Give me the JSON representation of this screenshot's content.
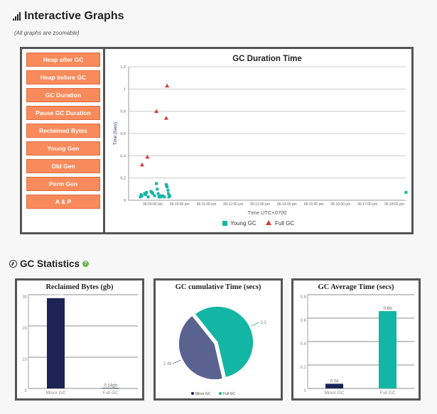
{
  "header": {
    "title": "Interactive Graphs",
    "subtitle": "(All graphs are zoomable)"
  },
  "menu": [
    "Heap after GC",
    "Heap before GC",
    "GC Duration",
    "Pause GC Duration",
    "Reclaimed Bytes",
    "Young Gen",
    "Old Gen",
    "Perm Gen",
    "A & P"
  ],
  "gc_stats": {
    "title": "GC Statistics"
  },
  "colors": {
    "accent_button": "#f88a5b",
    "young": "#13b5a5",
    "full": "#d93a3a",
    "navy": "#1c2456",
    "slate": "#5a6390",
    "teal": "#13b5a5"
  },
  "chart_data": [
    {
      "type": "scatter",
      "title": "GC Duration Time",
      "xlabel": "Time UTC+0700",
      "ylabel": "Time (Secs)",
      "ylim": [
        0,
        1.2
      ],
      "yticks": [
        "0",
        "0.2",
        "0.4",
        "0.6",
        "0.8",
        "1",
        "1.2"
      ],
      "xticks": [
        "06:09:00 pm",
        "06:10:00 pm",
        "06:11:00 pm",
        "06:12:00 pm",
        "06:13:00 pm",
        "06:14:00 pm",
        "06:15:00 pm",
        "06:16:00 pm",
        "06:17:00 pm",
        "06:18:00 pm"
      ],
      "legend_position": "bottom",
      "series": [
        {
          "name": "Young GC",
          "marker": "square",
          "points": [
            [
              "06:08:32 pm",
              0.03
            ],
            [
              "06:08:34 pm",
              0.05
            ],
            [
              "06:08:36 pm",
              0.04
            ],
            [
              "06:08:42 pm",
              0.06
            ],
            [
              "06:08:44 pm",
              0.05
            ],
            [
              "06:08:46 pm",
              0.07
            ],
            [
              "06:08:50 pm",
              0.03
            ],
            [
              "06:08:56 pm",
              0.08
            ],
            [
              "06:08:58 pm",
              0.07
            ],
            [
              "06:09:00 pm",
              0.06
            ],
            [
              "06:09:04 pm",
              0.04
            ],
            [
              "06:09:08 pm",
              0.15
            ],
            [
              "06:09:10 pm",
              0.1
            ],
            [
              "06:09:12 pm",
              0.06
            ],
            [
              "06:09:14 pm",
              0.03
            ],
            [
              "06:09:16 pm",
              0.04
            ],
            [
              "06:09:18 pm",
              0.03
            ],
            [
              "06:09:22 pm",
              0.04
            ],
            [
              "06:09:26 pm",
              0.03
            ],
            [
              "06:09:30 pm",
              0.14
            ],
            [
              "06:09:31 pm",
              0.13
            ],
            [
              "06:09:32 pm",
              0.12
            ],
            [
              "06:09:34 pm",
              0.09
            ],
            [
              "06:09:35 pm",
              0.06
            ],
            [
              "06:09:36 pm",
              0.03
            ],
            [
              "06:09:38 pm",
              0.04
            ],
            [
              "06:18:26 pm",
              0.07
            ]
          ]
        },
        {
          "name": "Full GC",
          "marker": "triangle",
          "points": [
            [
              "06:08:36 pm",
              0.32
            ],
            [
              "06:08:48 pm",
              0.39
            ],
            [
              "06:09:08 pm",
              0.8
            ],
            [
              "06:09:30 pm",
              0.74
            ],
            [
              "06:09:32 pm",
              1.03
            ]
          ]
        }
      ]
    },
    {
      "type": "bar",
      "title": "Reclaimed Bytes (gb)",
      "categories": [
        "Minor GC",
        "Full GC"
      ],
      "values": [
        28.89,
        0.14
      ],
      "data_labels": [
        "28.89gb",
        "0.14gb"
      ],
      "ylim": [
        0,
        30
      ],
      "yticks": [
        "0",
        "10",
        "20",
        "30"
      ]
    },
    {
      "type": "pie",
      "title": "GC cumulative Time (secs)",
      "labels": [
        "Minor GC",
        "Full GC"
      ],
      "values": [
        2.48,
        3.3
      ],
      "legend_position": "bottom"
    },
    {
      "type": "bar",
      "title": "GC Average Time (secs)",
      "categories": [
        "Minor GC",
        "Full GC"
      ],
      "values": [
        0.04,
        0.66
      ],
      "data_labels": [
        "0.04",
        "0.66"
      ],
      "ylim": [
        0,
        0.8
      ],
      "yticks": [
        "0",
        "0.2",
        "0.4",
        "0.6",
        "0.8"
      ]
    }
  ]
}
